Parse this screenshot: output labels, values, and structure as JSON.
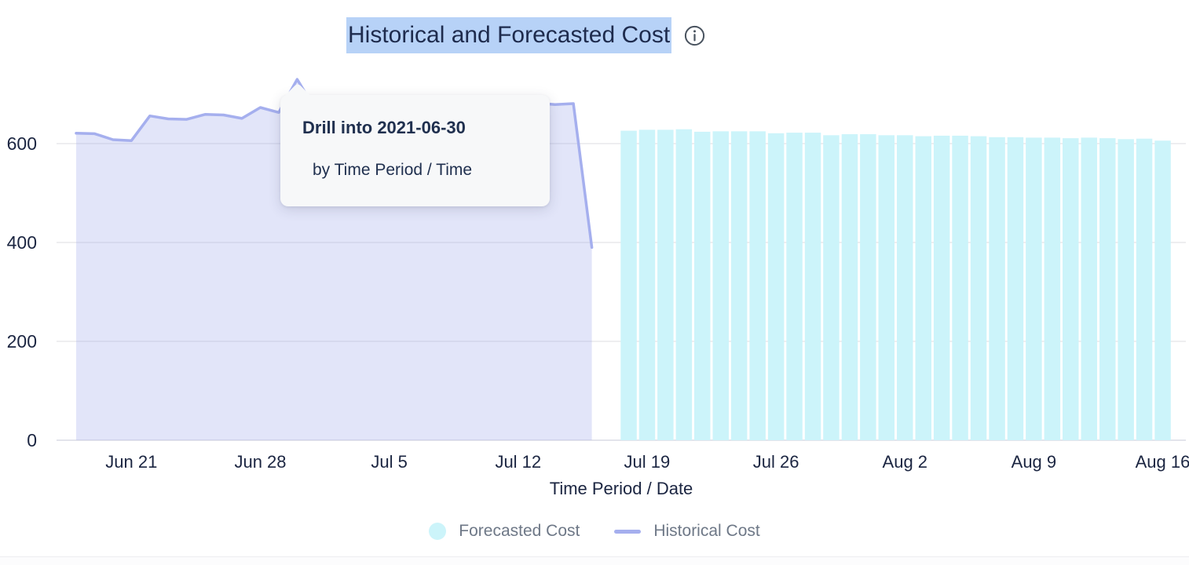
{
  "title": {
    "text": "Historical and Forecasted Cost",
    "highlighted": true,
    "highlight_color": "#b7d2f7"
  },
  "tooltip": {
    "title": "Drill into 2021-06-30",
    "subtitle": "by Time Period / Time"
  },
  "legend": [
    {
      "label": "Forecasted Cost",
      "marker": "circle",
      "color": "#ccf4fa"
    },
    {
      "label": "Historical Cost",
      "marker": "line",
      "color": "#a5afee"
    }
  ],
  "colors": {
    "axis_text": "#1b2541",
    "gridline": "#ebebee",
    "zero_line": "#dfe0e8",
    "bar_fill": "#ccf4fa",
    "line_stroke": "#a5afee",
    "area_fill": "rgba(166,176,238,0.33)",
    "legend_text": "#6e7887"
  },
  "chart_data": {
    "type": "mixed",
    "title": "Historical and Forecasted Cost",
    "xlabel": "Time Period / Date",
    "ylabel": "",
    "x_origin": "2021-06-18",
    "ylim": [
      0,
      750
    ],
    "yticks": [
      0,
      200,
      400,
      600
    ],
    "grid": "horizontal",
    "legend_position": "bottom",
    "xticks": [
      {
        "date": "2021-06-21",
        "label": "Jun 21"
      },
      {
        "date": "2021-06-28",
        "label": "Jun 28"
      },
      {
        "date": "2021-07-05",
        "label": "Jul 5"
      },
      {
        "date": "2021-07-12",
        "label": "Jul 12"
      },
      {
        "date": "2021-07-19",
        "label": "Jul 19"
      },
      {
        "date": "2021-07-26",
        "label": "Jul 26"
      },
      {
        "date": "2021-08-02",
        "label": "Aug 2"
      },
      {
        "date": "2021-08-09",
        "label": "Aug 9"
      },
      {
        "date": "2021-08-16",
        "label": "Aug 16"
      }
    ],
    "series": [
      {
        "name": "Historical Cost",
        "type": "area-line",
        "color": "#a5afee",
        "dates": [
          "2021-06-18",
          "2021-06-19",
          "2021-06-20",
          "2021-06-21",
          "2021-06-22",
          "2021-06-23",
          "2021-06-24",
          "2021-06-25",
          "2021-06-26",
          "2021-06-27",
          "2021-06-28",
          "2021-06-29",
          "2021-06-30",
          "2021-07-01",
          "2021-07-02",
          "2021-07-03",
          "2021-07-04",
          "2021-07-05",
          "2021-07-06",
          "2021-07-07",
          "2021-07-08",
          "2021-07-09",
          "2021-07-10",
          "2021-07-11",
          "2021-07-12",
          "2021-07-13",
          "2021-07-14",
          "2021-07-15",
          "2021-07-16"
        ],
        "values": [
          621,
          620,
          608,
          606,
          656,
          650,
          649,
          659,
          658,
          651,
          673,
          663,
          730,
          668,
          664,
          668,
          672,
          669,
          673,
          676,
          672,
          675,
          678,
          676,
          680,
          682,
          679,
          681,
          390
        ]
      },
      {
        "name": "Forecasted Cost",
        "type": "bar",
        "color": "#ccf4fa",
        "dates": [
          "2021-07-18",
          "2021-07-19",
          "2021-07-20",
          "2021-07-21",
          "2021-07-22",
          "2021-07-23",
          "2021-07-24",
          "2021-07-25",
          "2021-07-26",
          "2021-07-27",
          "2021-07-28",
          "2021-07-29",
          "2021-07-30",
          "2021-07-31",
          "2021-08-01",
          "2021-08-02",
          "2021-08-03",
          "2021-08-04",
          "2021-08-05",
          "2021-08-06",
          "2021-08-07",
          "2021-08-08",
          "2021-08-09",
          "2021-08-10",
          "2021-08-11",
          "2021-08-12",
          "2021-08-13",
          "2021-08-14",
          "2021-08-15",
          "2021-08-16"
        ],
        "values": [
          626,
          628,
          628,
          629,
          624,
          625,
          625,
          625,
          621,
          622,
          622,
          617,
          619,
          619,
          617,
          617,
          615,
          616,
          616,
          615,
          613,
          613,
          612,
          612,
          611,
          612,
          611,
          609,
          610,
          606
        ]
      }
    ],
    "drill_annotation": {
      "date": "2021-06-30",
      "value": 730
    }
  }
}
